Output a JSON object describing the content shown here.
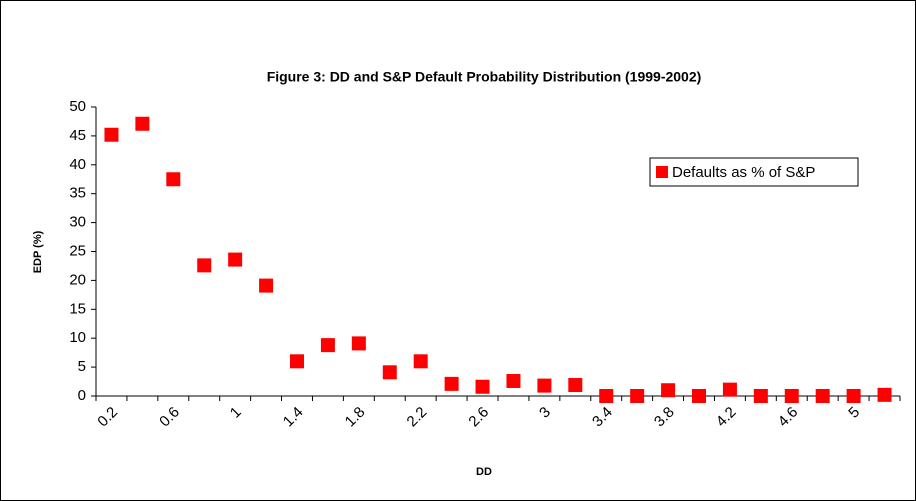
{
  "chart_data": {
    "type": "scatter",
    "title": "Figure 3: DD and S&P Default Probability Distribution (1999-2002)",
    "x_label": "DD",
    "y_label": "EDP (%)",
    "categories": [
      "0.2",
      null,
      "0.6",
      null,
      "1",
      null,
      "1.4",
      null,
      "1.8",
      null,
      "2.2",
      null,
      "2.6",
      null,
      "3",
      null,
      "3.4",
      null,
      "3.8",
      null,
      "4.2",
      null,
      "4.6",
      null,
      "5",
      null
    ],
    "series": [
      {
        "name": "Defaults as % of S&P",
        "color": "#ff0000",
        "marker": "square",
        "values": [
          45.2,
          47.1,
          37.5,
          22.6,
          23.6,
          19.1,
          6.0,
          8.8,
          9.1,
          4.1,
          6.0,
          2.1,
          1.6,
          2.6,
          1.8,
          1.9,
          0,
          0,
          1.0,
          0,
          1.1,
          0,
          0,
          0,
          0,
          0.2
        ]
      }
    ],
    "ylim": [
      0,
      50
    ],
    "yticks": [
      0,
      5,
      10,
      15,
      20,
      25,
      30,
      35,
      40,
      45,
      50
    ],
    "grid": false,
    "legend": "upper right"
  }
}
